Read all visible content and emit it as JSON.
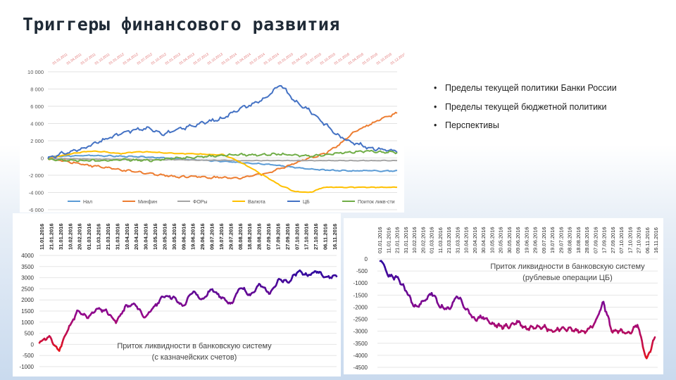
{
  "page": {
    "title": "Триггеры финансового развития"
  },
  "bullets": [
    "Пределы текущей политики Банки России",
    "Пределы текущей бюджетной политики",
    "Перспективы"
  ],
  "chart_data": [
    {
      "type": "line",
      "title": "",
      "x": [
        "01.01.2011",
        "01.04.2011",
        "01.07.2011",
        "01.10.2011",
        "01.01.2012",
        "01.04.2012",
        "01.07.2012",
        "01.10.2012",
        "01.01.2013",
        "01.04.2013",
        "01.07.2013",
        "01.10.2013",
        "01.01.2014",
        "01.04.2014",
        "01.07.2014",
        "01.10.2014",
        "01.01.2015",
        "01.04.2015",
        "01.07.2015",
        "01.10.2015",
        "01.01.2016",
        "01.04.2016",
        "01.07.2016",
        "01.10.2016",
        "01.12.2016"
      ],
      "xticks": [
        "01.01.2011",
        "01.04.2011",
        "01.07.2011",
        "01.10.2011",
        "01.01.2012",
        "01.04.2012",
        "01.07.2012",
        "01.10.2012",
        "01.01.2013",
        "01.04.2013",
        "01.07.2013",
        "01.10.2013",
        "01.01.2014",
        "01.04.2014",
        "01.07.2014",
        "01.10.2014",
        "01.01.2015",
        "01.04.2015",
        "01.07.2015",
        "01.10.2015",
        "01.01.2016",
        "01.04.2016",
        "01.07.2016",
        "01.10.2016",
        "01.12.2016"
      ],
      "ylim": [
        -6000,
        10000
      ],
      "yticks": [
        "10 000",
        "8 000",
        "6 000",
        "4 000",
        "2 000",
        "0",
        "-2 000",
        "-4 000",
        "-6 000"
      ],
      "ytick_values": [
        10000,
        8000,
        6000,
        4000,
        2000,
        0,
        -2000,
        -4000,
        -6000
      ],
      "grid": true,
      "legend_position": "bottom",
      "series": [
        {
          "name": "Нал",
          "color": "#5b9bd5",
          "values": [
            150,
            200,
            250,
            300,
            250,
            200,
            150,
            100,
            0,
            -100,
            -200,
            -300,
            -400,
            -500,
            -600,
            -700,
            -900,
            -1100,
            -1300,
            -1400,
            -1450,
            -1500,
            -1450,
            -1500,
            -1500
          ]
        },
        {
          "name": "Минфин",
          "color": "#ed7d31",
          "values": [
            0,
            -300,
            -600,
            -900,
            -1100,
            -1400,
            -1600,
            -1800,
            -2000,
            -2200,
            -2100,
            -2300,
            -2200,
            -2400,
            -2000,
            -1800,
            -1200,
            -600,
            0,
            500,
            1500,
            3000,
            3800,
            4600,
            5200
          ]
        },
        {
          "name": "ФОРы",
          "color": "#a5a5a5",
          "values": [
            -100,
            -100,
            -100,
            -150,
            -150,
            -150,
            -200,
            -200,
            -200,
            -200,
            -250,
            -250,
            -250,
            -300,
            -300,
            -300,
            -300,
            -300,
            -300,
            -300,
            -300,
            -300,
            -300,
            -300,
            -300
          ]
        },
        {
          "name": "Валюта",
          "color": "#ffc000",
          "values": [
            0,
            300,
            600,
            800,
            700,
            500,
            700,
            700,
            600,
            500,
            500,
            400,
            400,
            -300,
            -1200,
            -2200,
            -3200,
            -3900,
            -4000,
            -3400,
            -3400,
            -3400,
            -3400,
            -3400,
            -3400
          ]
        },
        {
          "name": "ЦБ",
          "color": "#4472c4",
          "values": [
            0,
            500,
            900,
            1500,
            2200,
            2800,
            3300,
            3400,
            2800,
            3300,
            3800,
            4200,
            4600,
            5600,
            6200,
            7000,
            8500,
            6500,
            5500,
            4000,
            2500,
            1800,
            1200,
            1000,
            800
          ]
        },
        {
          "name": "Поиток ликв-сти",
          "color": "#70ad47",
          "values": [
            -200,
            -250,
            -300,
            -300,
            -300,
            -200,
            -250,
            -300,
            -100,
            0,
            100,
            200,
            300,
            400,
            350,
            400,
            450,
            300,
            250,
            350,
            600,
            700,
            800,
            700,
            650
          ]
        }
      ]
    },
    {
      "type": "line",
      "title": "Приток ликвидности в банковскую систему (с казначейских счетов)",
      "x": [
        "11.01.2016",
        "21.01.2016",
        "31.01.2016",
        "10.02.2016",
        "20.02.2016",
        "01.03.2016",
        "11.03.2016",
        "21.03.2016",
        "31.03.2016",
        "10.04.2016",
        "20.04.2016",
        "30.04.2016",
        "10.05.2016",
        "20.05.2016",
        "30.05.2016",
        "09.06.2016",
        "19.06.2016",
        "29.06.2016",
        "09.07.2016",
        "19.07.2016",
        "29.07.2016",
        "08.08.2016",
        "18.08.2016",
        "28.08.2016",
        "07.09.2016",
        "17.09.2016",
        "27.09.2016",
        "07.10.2016",
        "17.10.2016",
        "27.10.2016",
        "06.11.2016",
        "16.11.2016"
      ],
      "xticks": [
        "11.01.2016",
        "21.01.2016",
        "31.01.2016",
        "10.02.2016",
        "20.02.2016",
        "01.03.2016",
        "11.03.2016",
        "21.03.2016",
        "31.03.2016",
        "10.04.2016",
        "20.04.2016",
        "30.04.2016",
        "10.05.2016",
        "20.05.2016",
        "30.05.2016",
        "09.06.2016",
        "19.06.2016",
        "29.06.2016",
        "09.07.2016",
        "19.07.2016",
        "29.07.2016",
        "08.08.2016",
        "18.08.2016",
        "28.08.2016",
        "07.09.2016",
        "17.09.2016",
        "27.09.2016",
        "07.10.2016",
        "17.10.2016",
        "27.10.2016",
        "06.11.2016",
        "16.11.2016"
      ],
      "ylim": [
        -1000,
        4000
      ],
      "yticks": [
        "4000",
        "3500",
        "3000",
        "2500",
        "2000",
        "1500",
        "1000",
        "500",
        "0",
        "-500",
        "-1000"
      ],
      "ytick_values": [
        4000,
        3500,
        3000,
        2500,
        2000,
        1500,
        1000,
        500,
        0,
        -500,
        -1000
      ],
      "grid": true,
      "values": [
        100,
        350,
        -300,
        700,
        1500,
        1200,
        1600,
        1500,
        1000,
        1700,
        1800,
        1200,
        1700,
        2200,
        2100,
        1700,
        2400,
        2000,
        2500,
        2100,
        1800,
        2600,
        2200,
        2700,
        2300,
        2900,
        2800,
        3300,
        3100,
        3300,
        3000,
        3100
      ]
    },
    {
      "type": "line",
      "title": "Приток ликвидности в банковскую систему (рублевые операции ЦБ)",
      "x": [
        "01.01.2016",
        "11.01.2016",
        "21.01.2016",
        "31.01.2016",
        "10.02.2016",
        "20.02.2016",
        "01.03.2016",
        "11.03.2016",
        "21.03.2016",
        "31.03.2016",
        "10.04.2016",
        "20.04.2016",
        "30.04.2016",
        "10.05.2016",
        "20.05.2016",
        "30.05.2016",
        "09.06.2016",
        "19.06.2016",
        "29.06.2016",
        "09.07.2016",
        "19.07.2016",
        "29.07.2016",
        "08.08.2016",
        "18.08.2016",
        "28.08.2016",
        "07.09.2016",
        "17.09.2016",
        "27.09.2016",
        "07.10.2016",
        "17.10.2016",
        "27.10.2016",
        "06.11.2016",
        "16.11.2016"
      ],
      "xticks": [
        "01.01.2016",
        "11.01.2016",
        "21.01.2016",
        "31.01.2016",
        "10.02.2016",
        "20.02.2016",
        "01.03.2016",
        "11.03.2016",
        "21.03.2016",
        "31.03.2016",
        "10.04.2016",
        "20.04.2016",
        "30.04.2016",
        "10.05.2016",
        "20.05.2016",
        "30.05.2016",
        "09.06.2016",
        "19.06.2016",
        "29.06.2016",
        "09.07.2016",
        "19.07.2016",
        "29.07.2016",
        "08.08.2016",
        "18.08.2016",
        "28.08.2016",
        "07.09.2016",
        "17.09.2016",
        "27.09.2016",
        "07.10.2016",
        "17.10.2016",
        "27.10.2016",
        "06.11.2016",
        "16.11.2016"
      ],
      "ylim": [
        -4500,
        0
      ],
      "yticks": [
        "0",
        "-500",
        "-1000",
        "-1500",
        "-2000",
        "-2500",
        "-3000",
        "-3500",
        "-4000",
        "-4500"
      ],
      "ytick_values": [
        0,
        -500,
        -1000,
        -1500,
        -2000,
        -2500,
        -3000,
        -3500,
        -4000,
        -4500
      ],
      "grid": true,
      "values": [
        0,
        -700,
        -800,
        -1300,
        -2000,
        -1800,
        -1400,
        -2000,
        -2100,
        -1500,
        -2100,
        -2500,
        -2400,
        -2700,
        -2800,
        -2800,
        -2600,
        -2900,
        -2800,
        -2800,
        -3000,
        -2900,
        -2900,
        -3000,
        -3000,
        -2700,
        -1800,
        -3000,
        -3000,
        -3100,
        -2700,
        -4200,
        -3300
      ]
    }
  ]
}
